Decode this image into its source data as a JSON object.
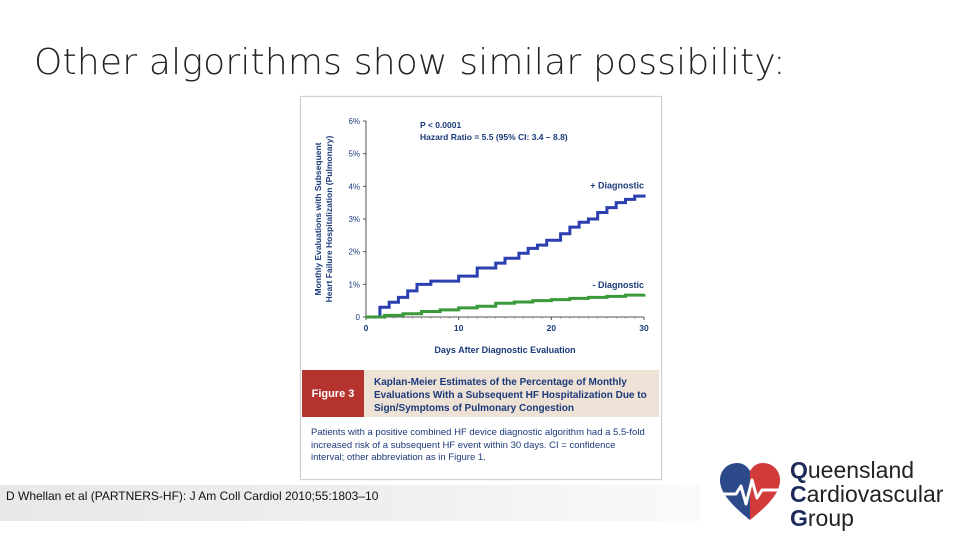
{
  "slide": {
    "title": "Other algorithms show similar possibility:",
    "citation": "D Whellan et al (PARTNERS-HF): J Am Coll Cardiol 2010;55:1803–10"
  },
  "figure": {
    "caption_label": "Figure 3",
    "caption_title": "Kaplan-Meier Estimates of the Percentage of Monthly Evaluations With a Subsequent HF Hospitalization Due to Sign/Symptoms of Pulmonary Congestion",
    "caption_body": "Patients with a positive combined HF device diagnostic algorithm had a 5.5-fold increased risk of a subsequent HF event within 30 days. CI = confidence interval; other abbreviation as in Figure 1."
  },
  "chart_data": {
    "type": "line",
    "title": "",
    "xlabel": "Days After Diagnostic Evaluation",
    "ylabel_line1": "Monthly Evaluations with Subsequent",
    "ylabel_line2": "Heart Failure Hospitalization (Pulmonary)",
    "xlim": [
      0,
      30
    ],
    "ylim": [
      0,
      6
    ],
    "x_ticks": [
      "0",
      "10",
      "20",
      "30"
    ],
    "y_ticks": [
      "0",
      "1%",
      "2%",
      "3%",
      "4%",
      "5%",
      "6%"
    ],
    "annotations": [
      "P < 0.0001",
      "Hazard Ratio = 5.5 (95% CI: 3.4 – 8.8)"
    ],
    "series": [
      {
        "name": "+ Diagnostic",
        "color": "#2b3fb0",
        "step": true,
        "x": [
          0,
          1.5,
          2.5,
          3.5,
          4.5,
          5.5,
          7,
          10,
          12,
          14,
          15,
          16.5,
          17.5,
          18.5,
          19.5,
          21,
          22,
          23,
          24,
          25,
          26,
          27,
          28,
          29,
          30
        ],
        "y": [
          0,
          0.3,
          0.45,
          0.6,
          0.8,
          1.0,
          1.1,
          1.25,
          1.5,
          1.65,
          1.8,
          1.95,
          2.1,
          2.2,
          2.35,
          2.55,
          2.75,
          2.9,
          3.0,
          3.2,
          3.35,
          3.5,
          3.6,
          3.7,
          3.75
        ]
      },
      {
        "name": "- Diagnostic",
        "color": "#3a9a3a",
        "step": true,
        "x": [
          0,
          2,
          4,
          6,
          8,
          10,
          12,
          14,
          16,
          18,
          20,
          22,
          24,
          26,
          28,
          30
        ],
        "y": [
          0,
          0.05,
          0.1,
          0.17,
          0.22,
          0.28,
          0.33,
          0.42,
          0.46,
          0.5,
          0.53,
          0.57,
          0.6,
          0.63,
          0.67,
          0.7
        ]
      }
    ]
  }
}
